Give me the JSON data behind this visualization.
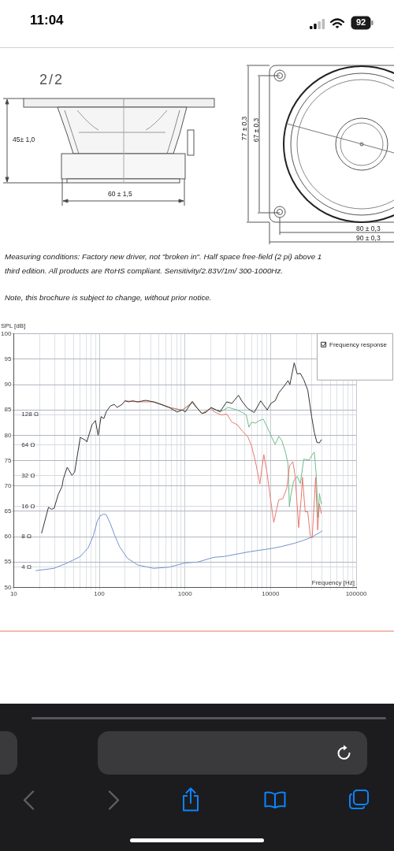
{
  "chart_data": {
    "type": "line",
    "xlabel": "Frequency [Hz]",
    "y2label": "SPL [dB]",
    "annotations": [
      "11:04",
      "92",
      "2/2",
      "45± 1,0",
      "60 ± 1,5",
      "77 ± 0,3",
      "67 ± 0,3",
      "80 ± 0,3",
      "90 ± 0,3",
      "Measuring conditions: Factory new driver, not \"broken in\". Half space free-field (2 pi) above 1",
      "third edition. All products are RoHS compliant. Sensitivity/2.83V/1m/ 300-1000Hz.",
      "Note, this brochure is subject to change, without prior notice."
    ],
    "series": [
      {
        "name": "Frequency response",
        "color": "#333333",
        "axis": "y2",
        "x": [
          21.2,
          25.5,
          27.7,
          29.7,
          33.1,
          36.7,
          38,
          42.2,
          47.9,
          51.5,
          60,
          69.2,
          71.5,
          82.3,
          90.2,
          96.9,
          105,
          113,
          121,
          135,
          150,
          161,
          185,
          199,
          220,
          245,
          282,
          348,
          430,
          530,
          655,
          809,
          931,
          1010,
          1220,
          1370,
          1580,
          1750,
          2020,
          2320,
          2580,
          3080,
          3540,
          4220,
          4690,
          5400,
          6440,
          7670,
          9140,
          10100,
          11300,
          12500,
          14400,
          16000,
          16800,
          18900,
          20500,
          22300,
          24400,
          27200,
          30200,
          32400,
          34800,
          37200,
          39100
        ],
        "values": [
          60.7,
          65.8,
          65.4,
          65.6,
          68.3,
          69.9,
          71.4,
          73.7,
          72.1,
          72.7,
          79.6,
          79,
          78.7,
          82.1,
          82.9,
          80,
          83.7,
          83.3,
          84.7,
          85.8,
          86.1,
          85.5,
          86.1,
          86.8,
          86.6,
          86.8,
          86.6,
          86.9,
          86.6,
          86.1,
          85.5,
          84.6,
          85,
          84.6,
          86.7,
          85.5,
          84.3,
          84.5,
          85.5,
          85,
          84.7,
          86.6,
          86.3,
          87.9,
          86.6,
          85.3,
          84.5,
          86.8,
          85,
          86.3,
          86.8,
          88.4,
          89.7,
          90.8,
          90,
          94.3,
          92.1,
          92.2,
          91,
          88.9,
          83.7,
          80.6,
          78.6,
          78.5,
          79.1
        ]
      },
      {
        "color": "#e8796e",
        "axis": "y2",
        "x": [
          199,
          282,
          430,
          655,
          931,
          1220,
          1580,
          2020,
          2160,
          2670,
          3080,
          3540,
          4070,
          4690,
          5400,
          6000,
          6660,
          7150,
          7500,
          8340,
          9080,
          9880,
          10900,
          11700,
          12500,
          13900,
          15500,
          16700,
          18200,
          19400,
          21300,
          22800,
          23600,
          25400,
          27200,
          29100,
          30600,
          33600,
          35500,
          37200,
          39100
        ],
        "values": [
          86.8,
          86.6,
          86.6,
          85.5,
          85,
          86.5,
          84.3,
          85.3,
          84.7,
          84,
          84.2,
          82.6,
          82.1,
          80.8,
          79.8,
          77.9,
          74.8,
          72.2,
          70.4,
          76.2,
          72.7,
          68,
          62.8,
          65.2,
          67.3,
          67.5,
          69.6,
          74,
          74.8,
          71.9,
          61.8,
          67.6,
          71.7,
          64.9,
          64.9,
          60.2,
          59.7,
          71.7,
          61.3,
          66.5,
          64.6
        ]
      },
      {
        "color": "#6dbb8a",
        "axis": "y2",
        "x": [
          430,
          655,
          931,
          1220,
          1580,
          2020,
          2580,
          3190,
          3540,
          4070,
          4690,
          5210,
          5590,
          6000,
          6660,
          7400,
          8220,
          9140,
          10100,
          11300,
          12500,
          13500,
          15000,
          16000,
          16600,
          17200,
          18600,
          20500,
          22300,
          24400,
          28200,
          31300,
          32400,
          34000,
          36000,
          37200,
          39100
        ],
        "values": [
          86.6,
          85.5,
          84.9,
          86.4,
          84.3,
          85.4,
          84.6,
          85.5,
          85.3,
          85,
          84.5,
          84,
          81.6,
          82.6,
          82.4,
          82.9,
          83.2,
          81.6,
          80,
          78.2,
          79.8,
          79,
          76.6,
          74.3,
          65.9,
          68,
          71,
          71.9,
          70.5,
          75.3,
          75.1,
          76.4,
          76.7,
          72.7,
          63.8,
          68.5,
          66.5
        ]
      },
      {
        "color": "#7393cc",
        "x": [
          18.2,
          29.7,
          42.2,
          60,
          74.1,
          85.3,
          94.8,
          102,
          113,
          121,
          135,
          150,
          172,
          213,
          282,
          430,
          655,
          998,
          1420,
          2160,
          2860,
          5790,
          10100,
          13500,
          19100,
          23600,
          30200,
          40000
        ],
        "values": [
          3.7,
          3.9,
          4.4,
          5.1,
          6.2,
          8.2,
          11.4,
          12.8,
          13.4,
          13.1,
          10.7,
          8.4,
          6.4,
          4.9,
          4.2,
          3.9,
          4,
          4.4,
          4.5,
          5,
          5.1,
          5.7,
          6.1,
          6.4,
          6.9,
          7.3,
          7.9,
          9.1
        ]
      }
    ],
    "xlim": [
      10,
      100000
    ],
    "xticks": [
      10,
      {
        "value": 20,
        "label": null
      },
      {
        "value": 30,
        "label": null
      },
      {
        "value": 40,
        "label": null
      },
      {
        "value": 50,
        "label": null
      },
      {
        "value": 60,
        "label": null
      },
      {
        "value": 70,
        "label": null
      },
      {
        "value": 80,
        "label": null
      },
      {
        "value": 90,
        "label": null
      },
      100,
      {
        "value": 200,
        "label": null
      },
      {
        "value": 300,
        "label": null
      },
      {
        "value": 400,
        "label": null
      },
      {
        "value": 500,
        "label": null
      },
      {
        "value": 600,
        "label": null
      },
      {
        "value": 700,
        "label": null
      },
      {
        "value": 800,
        "label": null
      },
      {
        "value": 900,
        "label": null
      },
      1000,
      {
        "value": 2000,
        "label": null
      },
      {
        "value": 3000,
        "label": null
      },
      {
        "value": 4000,
        "label": null
      },
      {
        "value": 5000,
        "label": null
      },
      {
        "value": 6000,
        "label": null
      },
      {
        "value": 7000,
        "label": null
      },
      {
        "value": 8000,
        "label": null
      },
      {
        "value": 9000,
        "label": null
      },
      10000,
      {
        "value": 20000,
        "label": null
      },
      {
        "value": 30000,
        "label": null
      },
      {
        "value": 40000,
        "label": null
      },
      {
        "value": 50000,
        "label": null
      },
      {
        "value": 60000,
        "label": null
      },
      {
        "value": 70000,
        "label": null
      },
      {
        "value": 80000,
        "label": null
      },
      {
        "value": 90000,
        "label": null
      },
      100000
    ],
    "ylim": [
      2.53,
      800
    ],
    "yticks": [
      {
        "value": 4,
        "label": "4 Ω"
      },
      {
        "value": 8,
        "label": "8 Ω"
      },
      {
        "value": 16,
        "label": "16 Ω"
      },
      {
        "value": 32,
        "label": "32 Ω"
      },
      {
        "value": 64,
        "label": "64 Ω"
      },
      {
        "value": 128,
        "label": "128 Ω"
      }
    ],
    "y2lim": [
      50,
      100
    ],
    "y2ticks": [
      50,
      55,
      60,
      65,
      70,
      75,
      80,
      85,
      90,
      95,
      100
    ],
    "log": "xy",
    "grid": true,
    "legend": "top right"
  }
}
